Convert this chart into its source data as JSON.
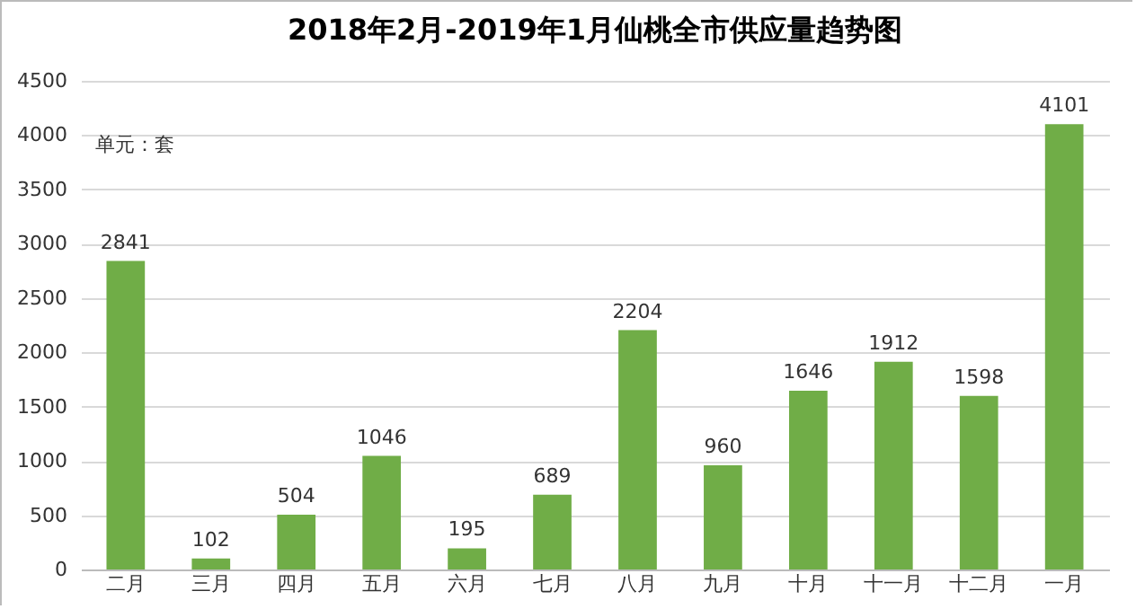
{
  "chart_data": {
    "type": "bar",
    "title": "2018年2月-2019年1月仙桃全市供应量趋势图",
    "annotations": [
      "单元：套"
    ],
    "categories": [
      "二月",
      "三月",
      "四月",
      "五月",
      "六月",
      "七月",
      "八月",
      "九月",
      "十月",
      "十一月",
      "十二月",
      "一月"
    ],
    "values": [
      2841,
      102,
      504,
      1046,
      195,
      689,
      2204,
      960,
      1646,
      1912,
      1598,
      4101
    ],
    "color": "#70ad47",
    "ylim": [
      0,
      4500
    ],
    "yticks": [
      0,
      500,
      1000,
      1500,
      2000,
      2500,
      3000,
      3500,
      4000,
      4500
    ],
    "grid": "y",
    "data_labels": true
  }
}
